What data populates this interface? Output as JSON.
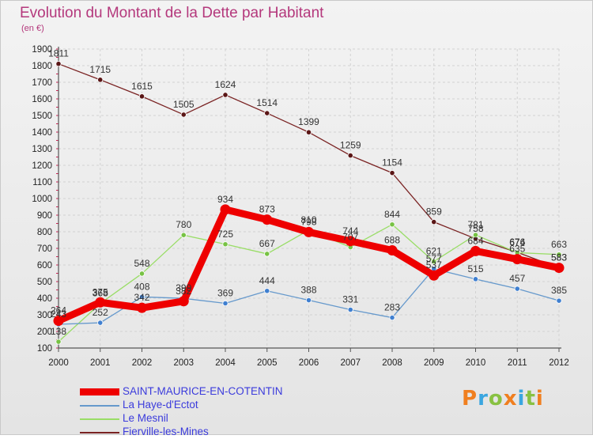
{
  "header": {
    "title": "Evolution du Montant de la Dette par Habitant",
    "unit": "(en €)"
  },
  "logo": {
    "text": "Proxiti"
  },
  "chart_data": {
    "type": "line",
    "title": "Evolution du Montant de la Dette par Habitant",
    "ylabel": "(en €)",
    "xlabel": "",
    "x": [
      "2000",
      "2001",
      "2002",
      "2003",
      "2004",
      "2005",
      "2006",
      "2007",
      "2008",
      "2009",
      "2010",
      "2011",
      "2012"
    ],
    "yticks": [
      100,
      200,
      300,
      400,
      500,
      600,
      700,
      800,
      900,
      1000,
      1100,
      1200,
      1300,
      1400,
      1500,
      1600,
      1700,
      1800,
      1900
    ],
    "ylim": [
      100,
      1900
    ],
    "grid": true,
    "legend_position": "bottom-left",
    "series": [
      {
        "name": "Fierville-les-Mines",
        "color": "#7a2323",
        "marker": "#5a1616",
        "values": [
          1811,
          1715,
          1615,
          1505,
          1624,
          1514,
          1399,
          1259,
          1154,
          859,
          758,
          676,
          583
        ]
      },
      {
        "name": "Le Mesnil",
        "color": "#99dd66",
        "marker": "#77c244",
        "values": [
          138,
          368,
          548,
          780,
          725,
          667,
          810,
          707,
          844,
          621,
          781,
          674,
          663
        ]
      },
      {
        "name": "La Haye-d'Ectot",
        "color": "#6699cc",
        "marker": "#3f7fd0",
        "values": [
          243,
          252,
          408,
          399,
          369,
          444,
          388,
          331,
          283,
          577,
          515,
          457,
          385
        ]
      },
      {
        "name": "SAINT-MAURICE-EN-COTENTIN",
        "color": "#ee0000",
        "marker": "#ee0000",
        "values": [
          264,
          375,
          342,
          382,
          934,
          873,
          798,
          744,
          688,
          537,
          684,
          635,
          583
        ]
      }
    ]
  }
}
